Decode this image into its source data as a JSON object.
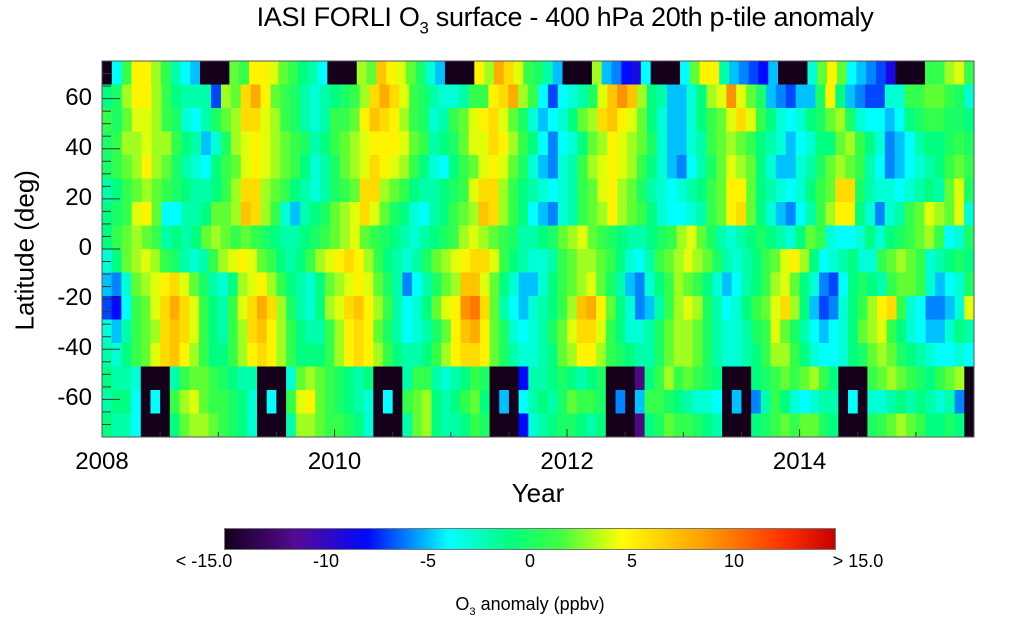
{
  "chart_data": {
    "type": "heatmap",
    "title": "IASI FORLI O3 surface - 400 hPa 20th p-tile anomaly",
    "title_parts": {
      "pre": "IASI FORLI O",
      "sub": "3",
      "post": " surface - 400 hPa 20th p-tile anomaly"
    },
    "xlabel": "Year",
    "ylabel": "Latitude (deg)",
    "x_ticks": [
      "2008",
      "2010",
      "2012",
      "2014"
    ],
    "x_tick_values": [
      2008,
      2010,
      2012,
      2014
    ],
    "xlim": [
      2008.0,
      2015.5
    ],
    "y_ticks": [
      "60",
      "40",
      "20",
      "0",
      "-20",
      "-40",
      "-60"
    ],
    "y_tick_values": [
      60,
      40,
      20,
      0,
      -20,
      -40,
      -60
    ],
    "ylim": [
      -75,
      75
    ],
    "x_start": 2008.0,
    "x_step_months": 1,
    "n_columns": 90,
    "lat_bins_top_to_bottom": [
      70.3,
      60.9,
      51.6,
      42.2,
      32.8,
      23.4,
      14.1,
      4.7,
      -4.7,
      -14.1,
      -23.4,
      -32.8,
      -42.2,
      -51.6,
      -60.9,
      -70.3
    ],
    "colorbar": {
      "label_pre": "O",
      "label_sub": "3",
      "label_post": " anomaly (ppbv)",
      "range": [
        -15.0,
        15.0
      ],
      "tick_labels": [
        "< -15.0",
        "-10",
        "-5",
        "0",
        "5",
        "10",
        "> 15.0"
      ],
      "tick_values": [
        -15,
        -10,
        -5,
        0,
        5,
        10,
        15
      ],
      "colors": [
        {
          "v": -15,
          "c": "#14001a"
        },
        {
          "v": -11.5,
          "c": "#560a94"
        },
        {
          "v": -8,
          "c": "#0008ff"
        },
        {
          "v": -4,
          "c": "#00ffff"
        },
        {
          "v": -1,
          "c": "#00ff80"
        },
        {
          "v": 1.5,
          "c": "#40ff40"
        },
        {
          "v": 4.5,
          "c": "#ffff00"
        },
        {
          "v": 8.5,
          "c": "#ffa000"
        },
        {
          "v": 12.5,
          "c": "#ff3000"
        },
        {
          "v": 15,
          "c": "#c80000"
        }
      ],
      "missing_color": "#14001a"
    },
    "values": [
      [
        null,
        -4,
        1,
        5,
        5,
        3,
        1,
        -2,
        -4,
        -5,
        null,
        null,
        null,
        2,
        1,
        5,
        5,
        4,
        2,
        1,
        -1,
        -2,
        -4,
        null,
        null,
        null,
        3,
        2,
        7,
        5,
        4,
        2,
        0,
        -3,
        -5,
        null,
        null,
        null,
        5,
        3,
        8,
        6,
        4,
        1,
        0,
        -2,
        -5,
        null,
        null,
        null,
        3,
        -5,
        -6,
        -8,
        -9,
        -4,
        null,
        null,
        null,
        -4,
        2,
        5,
        5,
        -2,
        -5,
        -6,
        -7,
        -8,
        -5,
        null,
        null,
        null,
        -3,
        2,
        5,
        2,
        -4,
        -5,
        -6,
        -7,
        -9,
        null,
        null,
        null,
        1,
        1,
        3,
        4,
        1
      ],
      [
        -1,
        0,
        3,
        5,
        5,
        3,
        1,
        -1,
        -2,
        -2,
        -2,
        -7,
        3,
        2,
        6,
        8,
        5,
        2,
        1,
        0,
        -2,
        -3,
        -2,
        -1,
        0,
        1,
        3,
        6,
        8,
        6,
        4,
        1,
        0,
        -2,
        -3,
        -3,
        -2,
        1,
        1,
        5,
        6,
        8,
        3,
        1,
        -4,
        -7,
        -4,
        -3,
        -2,
        0,
        4,
        7,
        9,
        7,
        3,
        -1,
        -2,
        -5,
        -5,
        -3,
        -1,
        3,
        4,
        9,
        4,
        2,
        0,
        -5,
        -6,
        -7,
        -5,
        -5,
        0,
        5,
        -1,
        -5,
        -6,
        -7,
        -7,
        -3,
        -3,
        1,
        1,
        2,
        2,
        1,
        0,
        -3
      ],
      [
        1,
        0,
        2,
        4,
        4,
        3,
        1,
        0,
        -3,
        -4,
        -2,
        0,
        2,
        3,
        6,
        6,
        4,
        3,
        1,
        0,
        -2,
        -3,
        -2,
        1,
        1,
        2,
        5,
        7,
        6,
        5,
        3,
        1,
        0,
        -3,
        -2,
        1,
        2,
        4,
        5,
        6,
        4,
        2,
        0,
        -3,
        -5,
        -4,
        -3,
        -1,
        2,
        3,
        6,
        7,
        5,
        4,
        2,
        -1,
        -3,
        -5,
        -5,
        -3,
        -1,
        1,
        2,
        4,
        6,
        4,
        1,
        -1,
        -3,
        -4,
        -3,
        -1,
        0,
        2,
        3,
        0,
        -3,
        -4,
        -4,
        -5,
        -4,
        -1,
        0,
        1,
        1,
        0,
        0,
        -1
      ],
      [
        0,
        1,
        3,
        3,
        4,
        3,
        3,
        1,
        -1,
        -2,
        -5,
        -3,
        0,
        3,
        4,
        5,
        4,
        3,
        2,
        1,
        0,
        -2,
        -1,
        1,
        2,
        3,
        4,
        5,
        5,
        5,
        4,
        2,
        1,
        -2,
        -1,
        0,
        2,
        4,
        4,
        6,
        5,
        3,
        1,
        -1,
        -4,
        -6,
        -4,
        -3,
        -1,
        2,
        3,
        5,
        4,
        3,
        2,
        0,
        -3,
        -5,
        -5,
        -3,
        -2,
        1,
        2,
        3,
        2,
        1,
        -1,
        -2,
        -3,
        -5,
        -4,
        -3,
        -1,
        -1,
        2,
        3,
        1,
        -1,
        -3,
        -6,
        -5,
        -4,
        -2,
        -1,
        -1,
        0,
        1,
        0
      ],
      [
        0,
        1,
        2,
        3,
        5,
        3,
        2,
        0,
        -2,
        -3,
        -4,
        -1,
        1,
        2,
        4,
        5,
        4,
        3,
        2,
        1,
        -1,
        -3,
        -2,
        0,
        2,
        3,
        4,
        6,
        5,
        4,
        3,
        1,
        -1,
        -3,
        -4,
        -1,
        1,
        2,
        4,
        5,
        4,
        2,
        0,
        -3,
        -5,
        -6,
        -3,
        -2,
        1,
        3,
        4,
        5,
        4,
        3,
        1,
        -1,
        -3,
        -5,
        -6,
        -4,
        -2,
        0,
        2,
        4,
        3,
        2,
        -1,
        -3,
        -5,
        -5,
        -3,
        -2,
        0,
        2,
        3,
        2,
        1,
        -2,
        -4,
        -6,
        -5,
        -4,
        -3,
        -2,
        -1,
        1,
        2,
        1
      ],
      [
        -2,
        -1,
        1,
        2,
        3,
        2,
        1,
        0,
        -1,
        -2,
        -2,
        -1,
        1,
        3,
        6,
        6,
        3,
        2,
        1,
        -1,
        -2,
        -3,
        -2,
        0,
        1,
        2,
        6,
        6,
        3,
        2,
        1,
        -1,
        -2,
        -2,
        -1,
        0,
        1,
        4,
        6,
        6,
        3,
        1,
        -1,
        -2,
        -3,
        -4,
        -3,
        -2,
        1,
        2,
        4,
        5,
        3,
        2,
        0,
        -2,
        -3,
        -4,
        -3,
        -2,
        -1,
        1,
        2,
        5,
        5,
        2,
        -1,
        -2,
        -3,
        -4,
        -3,
        -1,
        1,
        2,
        6,
        6,
        0,
        -2,
        -3,
        -3,
        -4,
        -3,
        -2,
        -1,
        -2,
        2,
        4,
        0
      ],
      [
        -1,
        0,
        1,
        4,
        5,
        2,
        -4,
        -4,
        -2,
        -2,
        -1,
        2,
        2,
        3,
        7,
        6,
        3,
        1,
        -3,
        -5,
        -2,
        -1,
        0,
        2,
        3,
        4,
        6,
        4,
        2,
        0,
        -1,
        -3,
        -4,
        -2,
        -1,
        1,
        2,
        3,
        7,
        6,
        3,
        1,
        -1,
        -4,
        -5,
        -6,
        -3,
        -2,
        1,
        2,
        3,
        5,
        3,
        2,
        1,
        -1,
        -3,
        -4,
        -4,
        -3,
        -2,
        1,
        2,
        5,
        6,
        2,
        -1,
        -3,
        -5,
        -6,
        -4,
        -2,
        1,
        3,
        5,
        5,
        -1,
        -3,
        -6,
        -3,
        -2,
        1,
        2,
        4,
        3,
        2,
        4,
        -3
      ],
      [
        -1,
        1,
        2,
        3,
        2,
        1,
        -2,
        -1,
        -2,
        -1,
        2,
        3,
        2,
        1,
        2,
        1,
        0,
        -1,
        -2,
        -2,
        -1,
        0,
        1,
        2,
        3,
        4,
        2,
        1,
        0,
        -1,
        -2,
        -3,
        -2,
        -1,
        0,
        1,
        3,
        4,
        3,
        2,
        1,
        0,
        -2,
        -2,
        -1,
        0,
        2,
        3,
        4,
        2,
        1,
        0,
        -1,
        -2,
        -2,
        -1,
        0,
        1,
        3,
        4,
        2,
        0,
        -2,
        -3,
        -2,
        -1,
        0,
        -1,
        -2,
        -3,
        -1,
        2,
        1,
        -3,
        -4,
        -4,
        -3,
        -1,
        -3,
        -1,
        0,
        1,
        2,
        3,
        1,
        -4,
        -3,
        0
      ],
      [
        -3,
        -1,
        2,
        3,
        4,
        3,
        1,
        0,
        -2,
        -3,
        -2,
        1,
        3,
        4,
        5,
        4,
        2,
        1,
        -1,
        -2,
        -1,
        1,
        3,
        4,
        5,
        6,
        5,
        3,
        1,
        -1,
        -2,
        -3,
        -2,
        0,
        2,
        3,
        4,
        5,
        6,
        6,
        4,
        1,
        -1,
        -2,
        -3,
        -3,
        -2,
        1,
        2,
        3,
        3,
        2,
        1,
        -1,
        -3,
        -4,
        -2,
        1,
        2,
        3,
        4,
        3,
        2,
        0,
        -2,
        -3,
        -2,
        -1,
        1,
        2,
        4,
        5,
        3,
        -1,
        -4,
        -3,
        -2,
        -1,
        -3,
        -3,
        1,
        2,
        3,
        2,
        1,
        -3,
        -2,
        -1,
        0,
        -1
      ],
      [
        -5,
        -6,
        -3,
        2,
        3,
        4,
        5,
        6,
        4,
        2,
        0,
        -2,
        -3,
        -1,
        3,
        4,
        5,
        3,
        1,
        -1,
        -2,
        -3,
        -1,
        2,
        3,
        4,
        5,
        4,
        2,
        0,
        -2,
        -6,
        -4,
        -2,
        0,
        2,
        3,
        7,
        7,
        4,
        2,
        -1,
        -3,
        -5,
        -5,
        -3,
        -1,
        1,
        2,
        3,
        4,
        2,
        0,
        -2,
        -5,
        -6,
        -3,
        -1,
        1,
        3,
        2,
        1,
        -1,
        -3,
        -5,
        -4,
        -2,
        -1,
        1,
        3,
        4,
        2,
        -1,
        -3,
        -6,
        -7,
        -4,
        -1,
        0,
        -1,
        -2,
        1,
        2,
        2,
        1,
        -3,
        -5,
        -4,
        -3,
        0
      ],
      [
        -7,
        -8,
        -4,
        1,
        2,
        4,
        6,
        8,
        6,
        4,
        1,
        -1,
        -2,
        1,
        4,
        6,
        8,
        6,
        3,
        0,
        -2,
        -3,
        -1,
        3,
        4,
        6,
        7,
        5,
        3,
        1,
        -2,
        -4,
        -3,
        -1,
        2,
        4,
        5,
        9,
        10,
        6,
        2,
        -2,
        -4,
        -5,
        -3,
        -2,
        -1,
        1,
        3,
        7,
        8,
        5,
        2,
        -1,
        -3,
        -6,
        -5,
        -2,
        1,
        3,
        4,
        3,
        0,
        -2,
        -4,
        -3,
        -1,
        1,
        2,
        4,
        6,
        3,
        -1,
        -5,
        -7,
        -6,
        -3,
        -1,
        1,
        3,
        5,
        6,
        1,
        -3,
        -4,
        -6,
        -6,
        -5,
        -3,
        4
      ],
      [
        -3,
        -5,
        -2,
        1,
        2,
        3,
        6,
        7,
        6,
        4,
        1,
        -1,
        -2,
        1,
        3,
        6,
        7,
        5,
        3,
        1,
        -1,
        -2,
        -2,
        1,
        3,
        5,
        6,
        5,
        2,
        0,
        -2,
        -4,
        -3,
        -2,
        0,
        2,
        5,
        7,
        8,
        5,
        2,
        0,
        -3,
        -4,
        -3,
        -2,
        0,
        2,
        4,
        6,
        6,
        4,
        1,
        -1,
        -3,
        -3,
        -2,
        0,
        2,
        3,
        3,
        2,
        0,
        -2,
        -3,
        -3,
        -2,
        0,
        1,
        4,
        2,
        0,
        -2,
        -4,
        -5,
        -4,
        -3,
        -1,
        2,
        3,
        4,
        1,
        -1,
        -3,
        -4,
        -5,
        -5,
        -3,
        -1,
        -2
      ],
      [
        -2,
        -3,
        -1,
        1,
        2,
        4,
        6,
        7,
        5,
        3,
        1,
        -1,
        -1,
        1,
        3,
        5,
        6,
        5,
        3,
        1,
        -1,
        -1,
        -1,
        1,
        3,
        5,
        6,
        5,
        3,
        1,
        -1,
        -2,
        -2,
        -1,
        1,
        3,
        5,
        6,
        6,
        5,
        2,
        0,
        -2,
        -3,
        -3,
        -2,
        -1,
        2,
        3,
        5,
        5,
        3,
        1,
        0,
        -1,
        -2,
        -2,
        0,
        2,
        3,
        3,
        2,
        0,
        -2,
        -3,
        -3,
        -2,
        -1,
        1,
        3,
        3,
        1,
        -1,
        -3,
        -4,
        -4,
        -3,
        -1,
        0,
        2,
        3,
        2,
        0,
        -1,
        -2,
        -3,
        -4,
        -4,
        -3,
        -4
      ],
      [
        -1,
        -2,
        -2,
        -3,
        null,
        null,
        null,
        -2,
        1,
        2,
        2,
        1,
        0,
        -1,
        -2,
        -2,
        null,
        null,
        null,
        -3,
        2,
        3,
        2,
        1,
        0,
        -1,
        -2,
        -1,
        null,
        null,
        null,
        -2,
        1,
        1,
        -2,
        -3,
        -2,
        -1,
        1,
        0,
        null,
        null,
        null,
        -8,
        -2,
        -2,
        -1,
        0,
        -1,
        -2,
        -1,
        0,
        null,
        null,
        null,
        -12,
        -1,
        1,
        3,
        1,
        2,
        1,
        0,
        -1,
        null,
        null,
        null,
        -1,
        0,
        1,
        2,
        1,
        2,
        3,
        1,
        -1,
        null,
        null,
        null,
        1,
        2,
        3,
        2,
        1,
        0,
        -1,
        1,
        2,
        3,
        null
      ],
      [
        -2,
        -1,
        -1,
        -4,
        null,
        -4,
        null,
        1,
        3,
        4,
        2,
        1,
        1,
        0,
        -1,
        -3,
        null,
        -4,
        null,
        1,
        4,
        5,
        2,
        1,
        0,
        -1,
        -2,
        -3,
        null,
        -4,
        null,
        1,
        2,
        3,
        -1,
        -2,
        -1,
        1,
        2,
        -1,
        null,
        -5,
        null,
        -4,
        -2,
        -1,
        -2,
        0,
        2,
        1,
        1,
        0,
        null,
        -6,
        null,
        -5,
        1,
        1,
        0,
        -1,
        -2,
        -3,
        -3,
        -4,
        null,
        -5,
        null,
        -6,
        -2,
        1,
        -1,
        -3,
        -4,
        -3,
        -2,
        -2,
        null,
        -4,
        null,
        -3,
        -3,
        -2,
        -1,
        -2,
        -1,
        -2,
        -3,
        -2,
        -6,
        null
      ],
      [
        -1,
        -2,
        -2,
        -4,
        null,
        null,
        null,
        -1,
        2,
        3,
        3,
        2,
        1,
        0,
        -1,
        -3,
        null,
        null,
        null,
        -2,
        3,
        3,
        2,
        1,
        1,
        0,
        -1,
        -3,
        null,
        null,
        null,
        -2,
        2,
        3,
        -1,
        -2,
        -2,
        -1,
        1,
        0,
        null,
        null,
        null,
        -8,
        -3,
        -2,
        -1,
        0,
        0,
        -1,
        -2,
        -1,
        null,
        null,
        null,
        -12,
        -1,
        0,
        2,
        1,
        1,
        0,
        -1,
        -2,
        null,
        null,
        null,
        -1,
        0,
        1,
        2,
        1,
        2,
        2,
        0,
        -1,
        null,
        null,
        null,
        0,
        1,
        2,
        3,
        2,
        1,
        -1,
        -1,
        0,
        -1,
        null
      ]
    ]
  }
}
